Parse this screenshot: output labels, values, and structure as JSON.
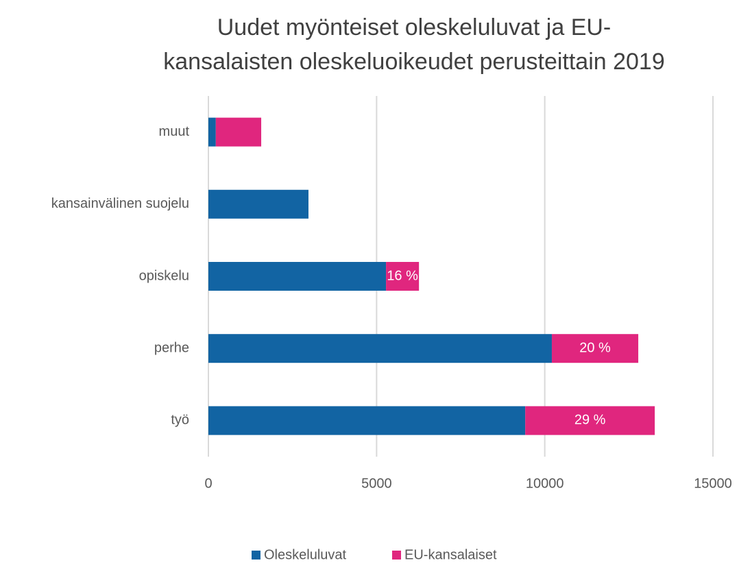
{
  "chart_data": {
    "type": "stacked-barh",
    "title": [
      "Uudet myönteiset oleskeluluvat ja EU-",
      "kansalaisten oleskeluoikeudet perusteittain 2019"
    ],
    "categories": [
      "muut",
      "kansainvälinen suojelu",
      "opiskelu",
      "perhe",
      "työ"
    ],
    "series": [
      {
        "name": "Oleskeluluvat",
        "color": "#1264a3",
        "values": [
          220,
          2975,
          5280,
          10210,
          9420
        ]
      },
      {
        "name": "EU-kansalaiset",
        "color": "#e0267e",
        "values": [
          1350,
          0,
          980,
          2570,
          3850
        ],
        "percent_labels": [
          null,
          null,
          "16 %",
          "20 %",
          "29 %"
        ]
      }
    ],
    "xlim": [
      0,
      15000
    ],
    "xticks": [
      0,
      5000,
      10000,
      15000
    ],
    "grid": true,
    "legend": "bottom"
  }
}
